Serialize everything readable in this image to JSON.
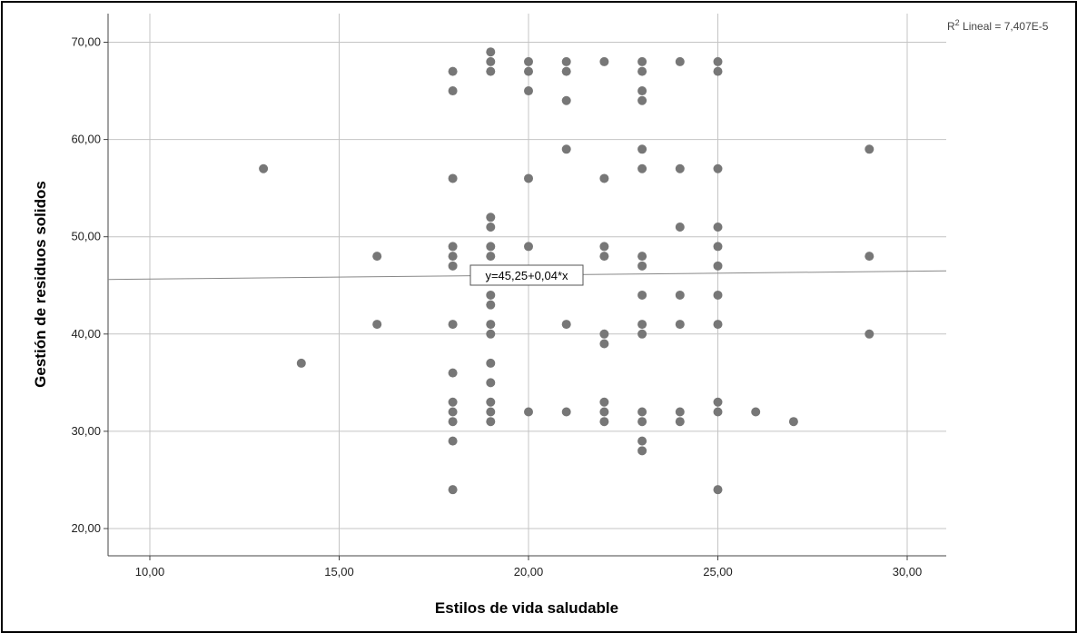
{
  "chart_data": {
    "type": "scatter",
    "xlabel": "Estilos de vida saludable",
    "ylabel": "Gestión de residuos solidos",
    "xlim": [
      9,
      31
    ],
    "ylim": [
      18,
      73
    ],
    "x_ticks": [
      "10,00",
      "15,00",
      "20,00",
      "25,00",
      "30,00"
    ],
    "y_ticks": [
      "20,00",
      "30,00",
      "40,00",
      "50,00",
      "60,00",
      "70,00"
    ],
    "x_tick_values": [
      10,
      15,
      20,
      25,
      30
    ],
    "y_tick_values": [
      20,
      30,
      40,
      50,
      60,
      70
    ],
    "grid": true,
    "marker_color": "#777777",
    "fit_line": {
      "intercept": 45.25,
      "slope": 0.04,
      "label": "y=45,25+0,04*x",
      "color": "#888888"
    },
    "r2_label": {
      "prefix": "R",
      "sup": "2",
      "text": " Lineal = 7,407E-5"
    },
    "points": [
      [
        13,
        57
      ],
      [
        14,
        37
      ],
      [
        16,
        48
      ],
      [
        16,
        41
      ],
      [
        18,
        67
      ],
      [
        18,
        65
      ],
      [
        18,
        56
      ],
      [
        18,
        49
      ],
      [
        18,
        48
      ],
      [
        18,
        47
      ],
      [
        18,
        41
      ],
      [
        18,
        36
      ],
      [
        18,
        33
      ],
      [
        18,
        32
      ],
      [
        18,
        31
      ],
      [
        18,
        29
      ],
      [
        18,
        24
      ],
      [
        19,
        69
      ],
      [
        19,
        68
      ],
      [
        19,
        67
      ],
      [
        19,
        52
      ],
      [
        19,
        51
      ],
      [
        19,
        49
      ],
      [
        19,
        48
      ],
      [
        19,
        44
      ],
      [
        19,
        43
      ],
      [
        19,
        41
      ],
      [
        19,
        40
      ],
      [
        19,
        37
      ],
      [
        19,
        35
      ],
      [
        19,
        33
      ],
      [
        19,
        32
      ],
      [
        19,
        31
      ],
      [
        20,
        68
      ],
      [
        20,
        67
      ],
      [
        20,
        65
      ],
      [
        20,
        56
      ],
      [
        20,
        49
      ],
      [
        20,
        32
      ],
      [
        21,
        68
      ],
      [
        21,
        67
      ],
      [
        21,
        64
      ],
      [
        21,
        59
      ],
      [
        21,
        41
      ],
      [
        21,
        32
      ],
      [
        22,
        68
      ],
      [
        22,
        56
      ],
      [
        22,
        49
      ],
      [
        22,
        48
      ],
      [
        22,
        40
      ],
      [
        22,
        39
      ],
      [
        22,
        33
      ],
      [
        22,
        32
      ],
      [
        22,
        31
      ],
      [
        23,
        68
      ],
      [
        23,
        67
      ],
      [
        23,
        65
      ],
      [
        23,
        64
      ],
      [
        23,
        59
      ],
      [
        23,
        57
      ],
      [
        23,
        48
      ],
      [
        23,
        47
      ],
      [
        23,
        44
      ],
      [
        23,
        41
      ],
      [
        23,
        40
      ],
      [
        23,
        32
      ],
      [
        23,
        31
      ],
      [
        23,
        29
      ],
      [
        23,
        28
      ],
      [
        24,
        68
      ],
      [
        24,
        57
      ],
      [
        24,
        51
      ],
      [
        24,
        44
      ],
      [
        24,
        41
      ],
      [
        24,
        32
      ],
      [
        24,
        31
      ],
      [
        25,
        68
      ],
      [
        25,
        67
      ],
      [
        25,
        57
      ],
      [
        25,
        51
      ],
      [
        25,
        49
      ],
      [
        25,
        47
      ],
      [
        25,
        44
      ],
      [
        25,
        41
      ],
      [
        25,
        33
      ],
      [
        25,
        32
      ],
      [
        25,
        24
      ],
      [
        26,
        32
      ],
      [
        27,
        31
      ],
      [
        29,
        59
      ],
      [
        29,
        48
      ],
      [
        29,
        40
      ]
    ]
  }
}
